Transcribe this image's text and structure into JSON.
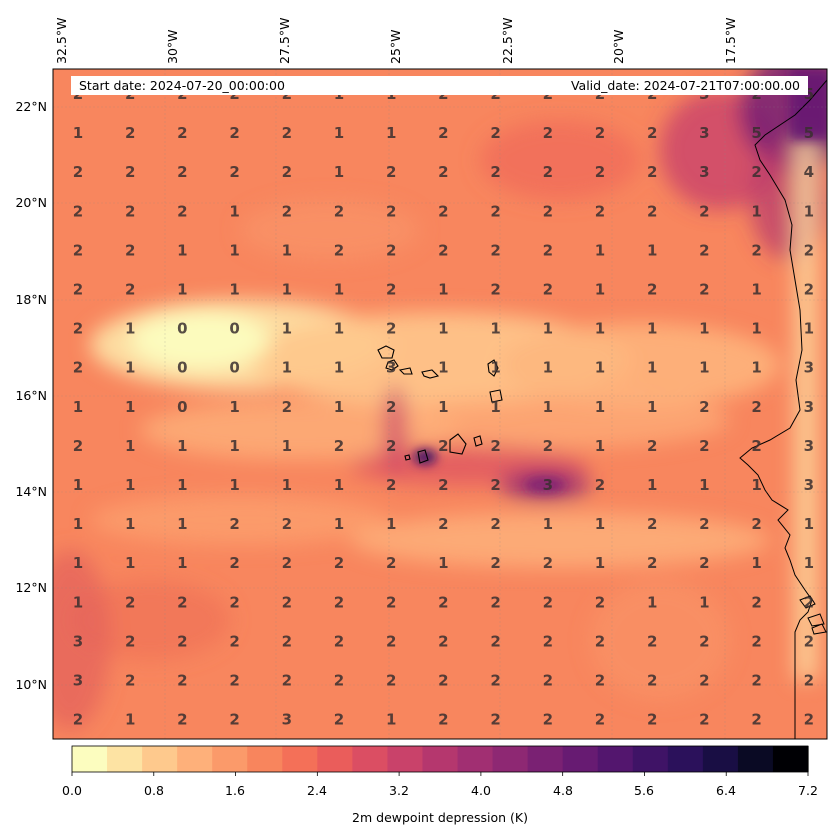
{
  "map": {
    "lon_labels": [
      "32.5°W",
      "30°W",
      "27.5°W",
      "25°W",
      "22.5°W",
      "20°W",
      "17.5°W"
    ],
    "lat_labels": [
      "22°N",
      "20°N",
      "18°N",
      "16°N",
      "14°N",
      "12°N",
      "10°N"
    ],
    "start_date": "Start date: 2024-07-20_00:00:00",
    "valid_date": "Valid_date: 2024-07-21T07:00:00.00",
    "grid_values": [
      [
        2,
        2,
        2,
        2,
        2,
        1,
        1,
        2,
        2,
        2,
        2,
        2,
        3,
        2,
        5
      ],
      [
        1,
        2,
        2,
        2,
        2,
        1,
        1,
        2,
        2,
        2,
        2,
        2,
        3,
        5,
        5
      ],
      [
        2,
        2,
        2,
        2,
        2,
        1,
        2,
        2,
        2,
        2,
        2,
        2,
        3,
        2,
        4
      ],
      [
        2,
        2,
        2,
        1,
        2,
        2,
        2,
        2,
        2,
        2,
        2,
        2,
        2,
        1,
        1
      ],
      [
        2,
        2,
        1,
        1,
        1,
        2,
        2,
        2,
        2,
        2,
        1,
        1,
        2,
        2,
        2
      ],
      [
        2,
        2,
        1,
        1,
        1,
        1,
        2,
        1,
        2,
        2,
        1,
        2,
        2,
        1,
        2
      ],
      [
        2,
        1,
        0,
        0,
        1,
        1,
        2,
        1,
        1,
        1,
        1,
        1,
        1,
        1,
        1
      ],
      [
        2,
        1,
        0,
        0,
        1,
        1,
        3,
        1,
        1,
        1,
        1,
        1,
        1,
        1,
        3
      ],
      [
        1,
        1,
        0,
        1,
        2,
        1,
        2,
        1,
        1,
        1,
        1,
        1,
        2,
        2,
        3
      ],
      [
        2,
        1,
        1,
        1,
        1,
        2,
        2,
        2,
        2,
        2,
        1,
        2,
        2,
        2,
        3
      ],
      [
        1,
        1,
        1,
        1,
        1,
        1,
        2,
        2,
        2,
        3,
        2,
        1,
        1,
        1,
        3
      ],
      [
        1,
        1,
        1,
        2,
        2,
        1,
        1,
        2,
        2,
        1,
        1,
        2,
        2,
        2,
        1
      ],
      [
        1,
        1,
        1,
        2,
        2,
        2,
        2,
        1,
        2,
        2,
        1,
        2,
        2,
        1,
        1
      ],
      [
        1,
        2,
        2,
        2,
        2,
        2,
        2,
        2,
        2,
        2,
        2,
        1,
        1,
        2,
        2
      ],
      [
        3,
        2,
        2,
        2,
        2,
        2,
        2,
        2,
        2,
        2,
        2,
        2,
        2,
        2,
        2
      ],
      [
        3,
        2,
        2,
        2,
        2,
        2,
        2,
        2,
        2,
        2,
        2,
        2,
        2,
        2,
        2
      ],
      [
        2,
        1,
        2,
        2,
        3,
        2,
        1,
        2,
        2,
        2,
        2,
        2,
        2,
        2,
        2
      ]
    ]
  },
  "colorbar": {
    "label": "2m dewpoint depression (K)",
    "tick_labels": [
      "0.0",
      "0.8",
      "1.6",
      "2.4",
      "3.2",
      "4.0",
      "4.8",
      "5.6",
      "6.4",
      "7.2"
    ],
    "colors": [
      "#fcfdbf",
      "#fde3a3",
      "#fec98d",
      "#feb07a",
      "#fb9a6a",
      "#f8855d",
      "#f47058",
      "#ea5d5b",
      "#db4e63",
      "#c9426a",
      "#b5376e",
      "#a12f72",
      "#8e2873",
      "#7a2173",
      "#671b72",
      "#53166e",
      "#3f1366",
      "#2b115b",
      "#190e44",
      "#0a0a24",
      "#000004"
    ]
  }
}
